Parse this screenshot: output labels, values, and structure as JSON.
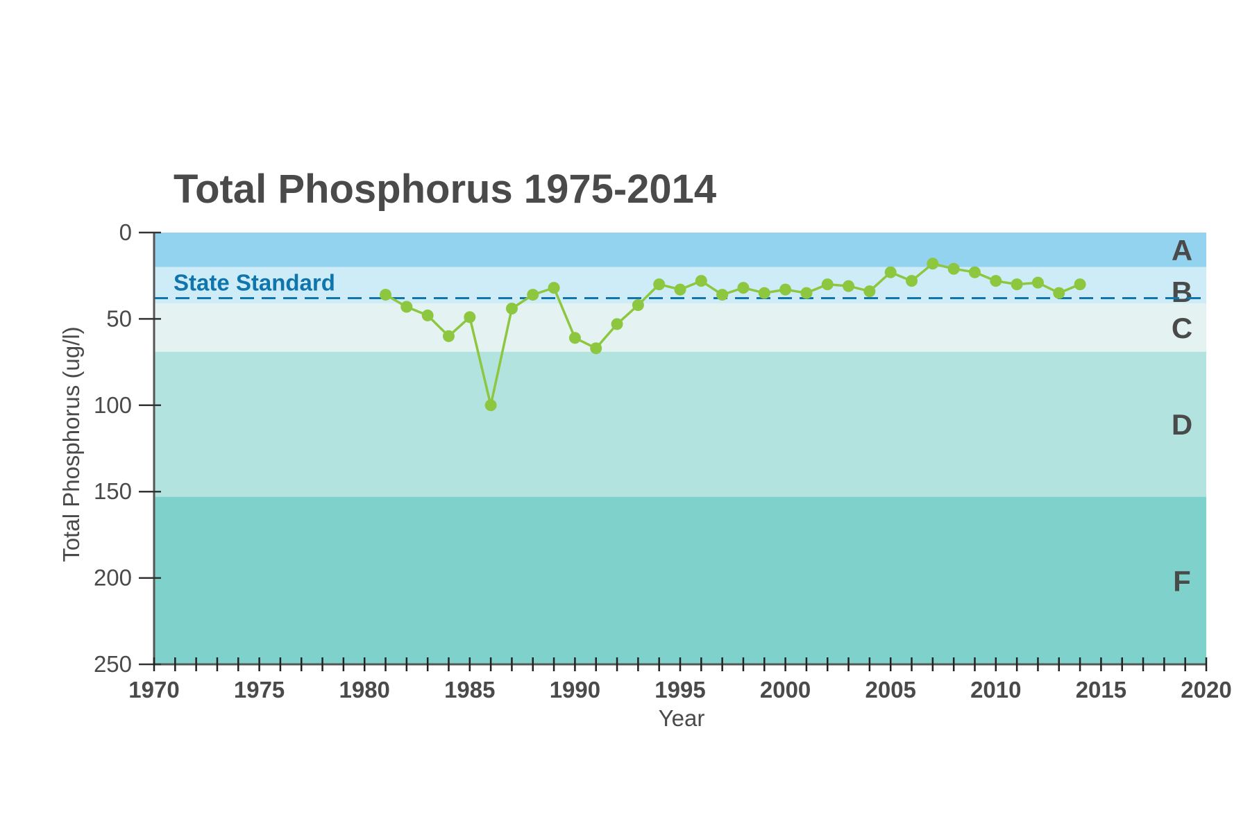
{
  "chart_data": {
    "type": "line",
    "title": "Total Phosphorus 1975-2014",
    "xlabel": "Year",
    "ylabel": "Total Phosphorus (ug/l)",
    "xlim": [
      1970,
      2020
    ],
    "ylim": [
      0,
      250
    ],
    "y_inverted": true,
    "x_ticks": [
      1970,
      1975,
      1980,
      1985,
      1990,
      1995,
      2000,
      2005,
      2010,
      2015,
      2020
    ],
    "x_tick_labels": [
      "1970",
      "1975",
      "1980",
      "1985",
      "1990",
      "1995",
      "2000",
      "2005",
      "2010",
      "2015",
      "2020"
    ],
    "x_minor_tick_step": 1,
    "y_ticks": [
      0,
      50,
      100,
      150,
      200,
      250
    ],
    "y_tick_labels": [
      "0",
      "50",
      "100",
      "150",
      "200",
      "250"
    ],
    "grid": false,
    "series": [
      {
        "name": "Total Phosphorus",
        "color": "#8dc63f",
        "x": [
          1981,
          1982,
          1983,
          1984,
          1985,
          1986,
          1987,
          1988,
          1989,
          1990,
          1991,
          1992,
          1993,
          1994,
          1995,
          1996,
          1997,
          1998,
          1999,
          2000,
          2001,
          2002,
          2003,
          2004,
          2005,
          2006,
          2007,
          2008,
          2009,
          2010,
          2011,
          2012,
          2013,
          2014
        ],
        "values": [
          36,
          43,
          48,
          60,
          49,
          100,
          44,
          36,
          32,
          61,
          67,
          53,
          42,
          30,
          33,
          28,
          36,
          32,
          35,
          33,
          35,
          30,
          31,
          34,
          23,
          28,
          18,
          21,
          23,
          28,
          30,
          29,
          35,
          30
        ]
      }
    ],
    "bands": [
      {
        "label": "A",
        "from": 0,
        "to": 20,
        "color": "#94d3ef"
      },
      {
        "label": "B",
        "from": 20,
        "to": 41,
        "color": "#cdecf7"
      },
      {
        "label": "C",
        "from": 41,
        "to": 69,
        "color": "#e4f3f2"
      },
      {
        "label": "D",
        "from": 69,
        "to": 153,
        "color": "#b3e3df"
      },
      {
        "label": "F",
        "from": 153,
        "to": 250,
        "color": "#7fd2cc"
      }
    ],
    "reference_line": {
      "label": "State Standard",
      "value": 38,
      "color": "#0f75ad"
    }
  }
}
